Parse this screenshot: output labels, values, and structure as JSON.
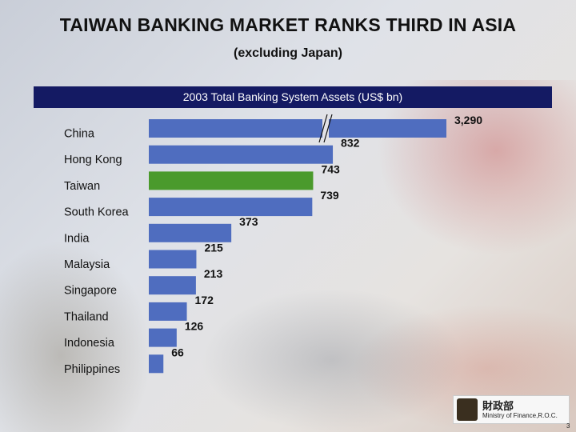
{
  "slide": {
    "title": "TAIWAN BANKING MARKET RANKS THIRD IN ASIA",
    "subtitle": "(excluding Japan)",
    "chart_header": "2003 Total Banking System Assets (US$ bn)",
    "logo_cn": "財政部",
    "logo_en": "Ministry of Finance,R.O.C.",
    "page_number": "3"
  },
  "colors": {
    "bar": "#4f6dbf",
    "highlight_bar": "#4a9a2c",
    "header_bg": "#141a63"
  },
  "chart_data": {
    "type": "bar",
    "orientation": "horizontal",
    "title": "2003 Total Banking System Assets (US$ bn)",
    "categories": [
      "China",
      "Hong Kong",
      "Taiwan",
      "South Korea",
      "India",
      "Malaysia",
      "Singapore",
      "Thailand",
      "Indonesia",
      "Philippines"
    ],
    "values": [
      3290,
      832,
      743,
      739,
      373,
      215,
      213,
      172,
      126,
      66
    ],
    "value_labels": [
      "3,290",
      "832",
      "743",
      "739",
      "373",
      "215",
      "213",
      "172",
      "126",
      "66"
    ],
    "highlight": "Taiwan",
    "axis_break": {
      "category": "China"
    },
    "xlabel": "",
    "ylabel": "",
    "grid": false,
    "legend": "none"
  }
}
